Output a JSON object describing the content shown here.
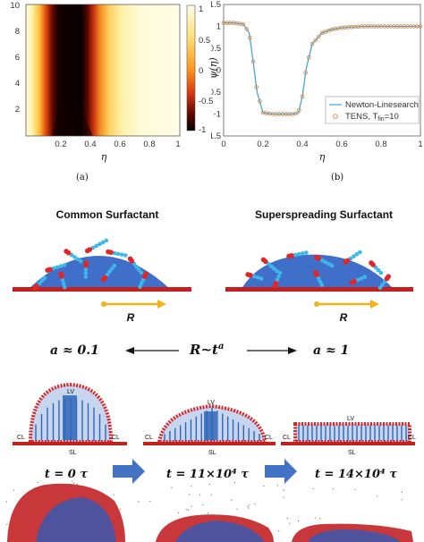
{
  "panel_a": {
    "caption": "(a)",
    "xlabel": "η",
    "colorbar_ticks": [
      "1",
      "0.5",
      "0",
      "-0.5",
      "-1"
    ],
    "x_ticks": [
      "0.2",
      "0.4",
      "0.6",
      "0.8",
      "1"
    ],
    "y_ticks": [
      "10",
      "8",
      "6",
      "4",
      "2"
    ]
  },
  "panel_b": {
    "caption": "(b)",
    "xlabel": "η",
    "ylabel": "ψ(η)",
    "legend": {
      "line": "Newton-Linesearch",
      "markers_prefix": "TENS, T",
      "markers_sub": "fin",
      "markers_suffix": "=10"
    },
    "x_ticks": [
      "0",
      "0.2",
      "0.4",
      "0.6",
      "0.8",
      "1"
    ],
    "y_ticks": [
      "1.5",
      "1",
      "0.5",
      "0",
      "-0.5",
      "-1",
      "-1.5"
    ]
  },
  "chart_data": {
    "type": "line",
    "xlabel": "η",
    "ylabel": "ψ(η)",
    "xlim": [
      0,
      1
    ],
    "ylim": [
      -1.5,
      1.5
    ],
    "x": [
      0,
      0.05,
      0.1,
      0.13,
      0.15,
      0.17,
      0.2,
      0.25,
      0.3,
      0.35,
      0.38,
      0.4,
      0.42,
      0.45,
      0.5,
      0.55,
      0.6,
      0.7,
      0.8,
      0.9,
      1.0
    ],
    "series": [
      {
        "name": "Newton-Linesearch",
        "values": [
          1.08,
          1.08,
          1.05,
          0.85,
          0.2,
          -0.5,
          -0.97,
          -1.0,
          -1.0,
          -1.0,
          -0.98,
          -0.6,
          0.05,
          0.6,
          0.85,
          0.93,
          0.97,
          1.0,
          1.0,
          1.0,
          1.0
        ]
      },
      {
        "name": "TENS, Tfin=10",
        "values": [
          1.08,
          1.08,
          1.05,
          0.85,
          0.2,
          -0.5,
          -0.97,
          -1.0,
          -1.0,
          -1.0,
          -0.98,
          -0.6,
          0.05,
          0.6,
          0.85,
          0.93,
          0.97,
          1.0,
          1.0,
          1.0,
          1.0
        ]
      }
    ]
  },
  "middle": {
    "left_title": "Common Surfactant",
    "right_title": "Superspreading Surfactant",
    "r_label": "R",
    "eq_left": "a ≈ 0.1",
    "eq_center": "R~t",
    "eq_center_sup": "a",
    "eq_right": "a ≈ 1"
  },
  "bottom": {
    "labels": {
      "lv": "LV",
      "cl": "CL",
      "sl": "SL"
    },
    "times": [
      "t = 0 τ",
      "t = 11×10⁴ τ",
      "t = 14×10⁴ τ"
    ],
    "colors": {
      "membrane_red": "#d8262a",
      "interior_blue": "#2f66b8",
      "arrow_blue": "#4472c4"
    }
  }
}
